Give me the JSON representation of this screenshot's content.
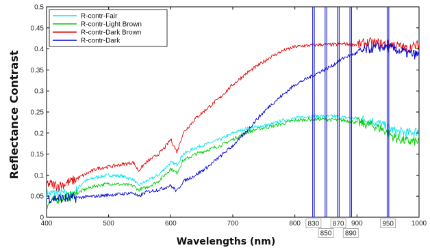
{
  "chart_data": {
    "type": "line",
    "title": "",
    "xlabel": "Wavelengths (nm)",
    "ylabel": "Reflectance Contrast",
    "xlim": [
      400,
      1000
    ],
    "ylim": [
      0,
      0.5
    ],
    "xticks": [
      "400",
      "500",
      "600",
      "700",
      "800",
      "900",
      "1000"
    ],
    "yticks": [
      "0",
      "0.05",
      "0.1",
      "0.15",
      "0.2",
      "0.25",
      "0.3",
      "0.35",
      "0.4",
      "0.45",
      "0.5"
    ],
    "legend_position": "top-left",
    "grid": false,
    "series": [
      {
        "name": "R-contr-Fair",
        "color": "#00e5ee",
        "x": [
          400,
          420,
          440,
          460,
          480,
          500,
          520,
          540,
          548,
          560,
          580,
          600,
          610,
          620,
          640,
          660,
          680,
          700,
          720,
          740,
          760,
          780,
          800,
          820,
          840,
          860,
          880,
          900,
          920,
          940,
          960,
          980,
          1000
        ],
        "y": [
          0.055,
          0.06,
          0.05,
          0.085,
          0.095,
          0.1,
          0.098,
          0.09,
          0.075,
          0.085,
          0.1,
          0.13,
          0.125,
          0.15,
          0.165,
          0.175,
          0.185,
          0.2,
          0.21,
          0.215,
          0.22,
          0.23,
          0.235,
          0.24,
          0.24,
          0.24,
          0.237,
          0.235,
          0.23,
          0.22,
          0.205,
          0.2,
          0.205
        ]
      },
      {
        "name": "R-contr-Light Brown",
        "color": "#00cc00",
        "x": [
          400,
          420,
          440,
          460,
          480,
          500,
          520,
          540,
          548,
          560,
          580,
          600,
          610,
          620,
          640,
          660,
          680,
          700,
          720,
          740,
          760,
          780,
          800,
          820,
          840,
          860,
          880,
          900,
          920,
          940,
          960,
          980,
          1000
        ],
        "y": [
          0.03,
          0.045,
          0.05,
          0.065,
          0.075,
          0.08,
          0.078,
          0.075,
          0.065,
          0.07,
          0.085,
          0.115,
          0.105,
          0.135,
          0.15,
          0.16,
          0.17,
          0.185,
          0.2,
          0.21,
          0.215,
          0.222,
          0.23,
          0.232,
          0.233,
          0.232,
          0.23,
          0.225,
          0.22,
          0.21,
          0.19,
          0.18,
          0.18
        ]
      },
      {
        "name": "R-contr-Dark Brown",
        "color": "#e00000",
        "x": [
          400,
          420,
          440,
          460,
          480,
          500,
          520,
          540,
          548,
          560,
          580,
          590,
          600,
          610,
          620,
          640,
          660,
          680,
          700,
          720,
          740,
          760,
          780,
          800,
          820,
          840,
          860,
          880,
          900,
          920,
          940,
          960,
          980,
          1000
        ],
        "y": [
          0.08,
          0.075,
          0.085,
          0.1,
          0.115,
          0.12,
          0.125,
          0.13,
          0.11,
          0.13,
          0.15,
          0.165,
          0.185,
          0.155,
          0.2,
          0.235,
          0.26,
          0.285,
          0.315,
          0.34,
          0.36,
          0.38,
          0.395,
          0.405,
          0.408,
          0.41,
          0.41,
          0.412,
          0.41,
          0.415,
          0.412,
          0.41,
          0.4,
          0.41
        ]
      },
      {
        "name": "R-contr-Dark",
        "color": "#0000cc",
        "x": [
          400,
          420,
          440,
          460,
          480,
          500,
          520,
          540,
          548,
          560,
          580,
          600,
          610,
          620,
          640,
          660,
          680,
          700,
          720,
          740,
          760,
          780,
          800,
          820,
          840,
          860,
          880,
          900,
          920,
          940,
          960,
          980,
          1000
        ],
        "y": [
          0.045,
          0.045,
          0.045,
          0.048,
          0.05,
          0.053,
          0.055,
          0.058,
          0.048,
          0.06,
          0.065,
          0.075,
          0.062,
          0.085,
          0.1,
          0.12,
          0.145,
          0.17,
          0.2,
          0.235,
          0.265,
          0.29,
          0.315,
          0.33,
          0.345,
          0.36,
          0.38,
          0.39,
          0.4,
          0.405,
          0.4,
          0.39,
          0.385
        ]
      }
    ],
    "wavelength_markers": {
      "color": "#1a1acc",
      "values": [
        830,
        850,
        870,
        890,
        950
      ],
      "labels_top": [
        "830",
        "870",
        "950"
      ],
      "labels_bottom": [
        "850",
        "890"
      ]
    }
  }
}
